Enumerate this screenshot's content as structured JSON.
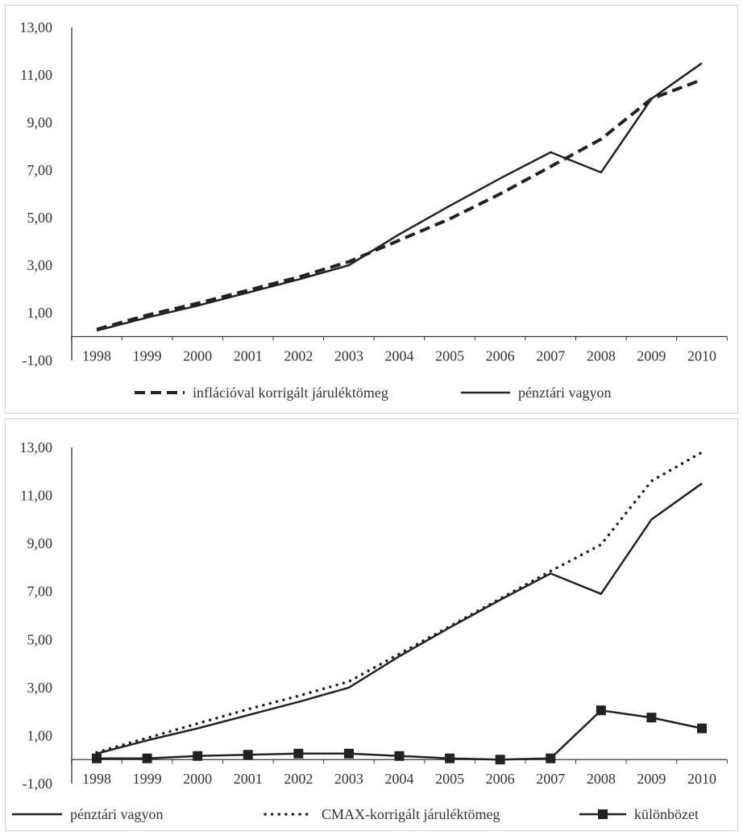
{
  "chart_data": [
    {
      "type": "line",
      "title": "",
      "xlabel": "",
      "ylabel": "",
      "ylim": [
        -1,
        13
      ],
      "yticks": [
        "-1,00",
        "1,00",
        "3,00",
        "5,00",
        "7,00",
        "9,00",
        "11,00",
        "13,00"
      ],
      "x": [
        "1998",
        "1999",
        "2000",
        "2001",
        "2002",
        "2003",
        "2004",
        "2005",
        "2006",
        "2007",
        "2008",
        "2009",
        "2010"
      ],
      "grid": false,
      "legend": "bottom",
      "series": [
        {
          "name": "inflációval korrigált járuléktömeg",
          "style": "dashed",
          "color": "#222222",
          "values": [
            0.3,
            0.9,
            1.4,
            1.95,
            2.5,
            3.15,
            4.05,
            4.95,
            6.0,
            7.15,
            8.3,
            10.0,
            10.8
          ]
        },
        {
          "name": "pénztári vagyon",
          "style": "solid",
          "color": "#222222",
          "values": [
            0.25,
            0.8,
            1.3,
            1.85,
            2.4,
            3.0,
            4.3,
            5.5,
            6.65,
            7.75,
            6.9,
            10.0,
            11.5
          ]
        }
      ]
    },
    {
      "type": "line",
      "title": "",
      "xlabel": "",
      "ylabel": "",
      "ylim": [
        -1,
        13
      ],
      "yticks": [
        "-1,00",
        "1,00",
        "3,00",
        "5,00",
        "7,00",
        "9,00",
        "11,00",
        "13,00"
      ],
      "x": [
        "1998",
        "1999",
        "2000",
        "2001",
        "2002",
        "2003",
        "2004",
        "2005",
        "2006",
        "2007",
        "2008",
        "2009",
        "2010"
      ],
      "grid": false,
      "legend": "bottom",
      "series": [
        {
          "name": "pénztári vagyon",
          "style": "solid",
          "color": "#222222",
          "values": [
            0.25,
            0.8,
            1.3,
            1.85,
            2.4,
            3.0,
            4.3,
            5.5,
            6.65,
            7.75,
            6.9,
            10.0,
            11.5
          ]
        },
        {
          "name": "CMAX-korrigált járuléktömeg",
          "style": "dotted",
          "color": "#222222",
          "values": [
            0.3,
            0.9,
            1.5,
            2.1,
            2.65,
            3.25,
            4.4,
            5.55,
            6.7,
            7.85,
            8.95,
            11.6,
            12.8
          ]
        },
        {
          "name": "különbözet",
          "style": "solid-square-markers",
          "color": "#222222",
          "values": [
            0.05,
            0.05,
            0.15,
            0.2,
            0.25,
            0.25,
            0.15,
            0.05,
            0.0,
            0.05,
            2.05,
            1.75,
            1.3
          ]
        }
      ]
    }
  ]
}
